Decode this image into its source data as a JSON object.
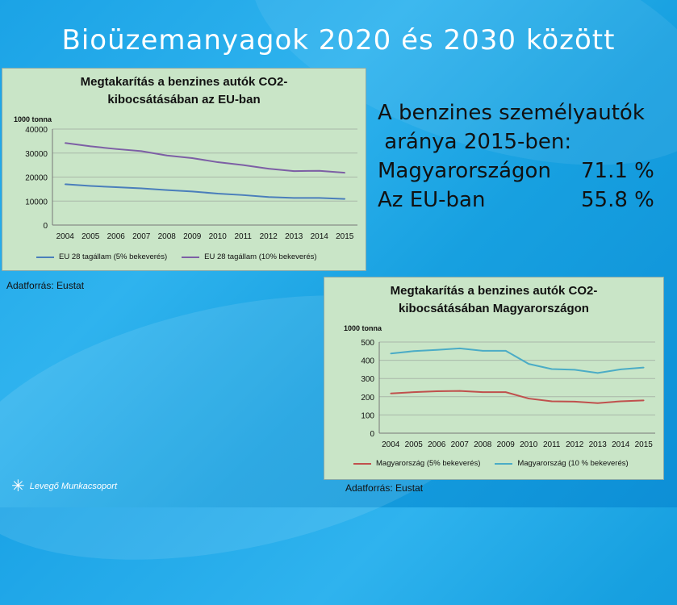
{
  "slide": {
    "title": "Bioüzemanyagok 2020 és 2030 között",
    "info": {
      "line1": "A benzines személyautók",
      "line2": " aránya 2015-ben:",
      "rows": [
        {
          "label": "Magyarországon",
          "value": "71.1 %"
        },
        {
          "label": "Az EU-ban",
          "value": "55.8 %"
        }
      ]
    },
    "source1": "Adatforrás: Eustat",
    "source2": "Adatforrás: Eustat",
    "logo": "Levegő Munkacsoport"
  },
  "chart_data": [
    {
      "type": "line",
      "title_line1": "Megtakarítás a benzines autók CO2-",
      "title_line2": "kibocsátásában az EU-ban",
      "unit": "1000 tonna",
      "x": [
        "2004",
        "2005",
        "2006",
        "2007",
        "2008",
        "2009",
        "2010",
        "2011",
        "2012",
        "2013",
        "2014",
        "2015"
      ],
      "ylim": [
        0,
        40000
      ],
      "yticks": [
        0,
        10000,
        20000,
        30000,
        40000
      ],
      "grid": true,
      "legend": "bottom",
      "series": [
        {
          "name": "EU 28 tagállam (5% bekeverés)",
          "color": "#4a7ebb",
          "values": [
            17000,
            16300,
            15800,
            15300,
            14600,
            14000,
            13100,
            12500,
            11700,
            11300,
            11300,
            10900
          ]
        },
        {
          "name": "EU 28 tagállam (10% bekeverés)",
          "color": "#7d5fa5",
          "values": [
            34200,
            32800,
            31700,
            30800,
            29000,
            27900,
            26200,
            25000,
            23500,
            22500,
            22600,
            21800
          ]
        }
      ]
    },
    {
      "type": "line",
      "title_line1": "Megtakarítás a benzines autók CO2-",
      "title_line2": "kibocsátásában Magyarországon",
      "unit": "1000 tonna",
      "x": [
        "2004",
        "2005",
        "2006",
        "2007",
        "2008",
        "2009",
        "2010",
        "2011",
        "2012",
        "2013",
        "2014",
        "2015"
      ],
      "ylim": [
        0,
        500
      ],
      "yticks": [
        0,
        100,
        200,
        300,
        400,
        500
      ],
      "grid": true,
      "legend": "bottom",
      "series": [
        {
          "name": "Magyarország (5% bekeverés)",
          "color": "#c0504d",
          "values": [
            218,
            225,
            230,
            232,
            225,
            225,
            190,
            175,
            173,
            165,
            175,
            180
          ]
        },
        {
          "name": "Magyarország (10 % bekeverés)",
          "color": "#4bacc6",
          "values": [
            437,
            450,
            457,
            465,
            452,
            452,
            380,
            352,
            348,
            330,
            350,
            360
          ]
        }
      ]
    }
  ]
}
